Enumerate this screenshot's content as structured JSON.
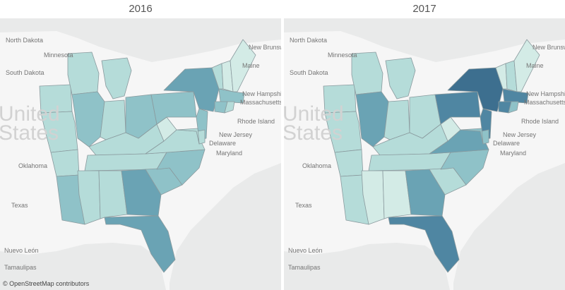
{
  "colors": {
    "water": "#e9eaea",
    "land": "#f6f6f6",
    "state_border": "#8a9a9e",
    "scale": [
      "#d3ebe6",
      "#b5dcd9",
      "#8fc2c8",
      "#6aa3b4",
      "#4f86a2",
      "#3d6f8f"
    ]
  },
  "credit": "© OpenStreetMap contributors",
  "maps": [
    {
      "title": "2016",
      "labels": {
        "north_dakota": "North Dakota",
        "minnesota": "Minnesota",
        "south_dakota": "South Dakota",
        "united": "United",
        "states": "States",
        "oklahoma": "Oklahoma",
        "texas": "Texas",
        "nuevo_leon": "Nuevo León",
        "tamaulipas": "Tamaulipas",
        "new_brunswick": "New Brunswick",
        "maine": "Maine",
        "new_hampshire": "New Hampshire",
        "massachusetts": "Massachusetts",
        "rhode_island": "Rhode Island",
        "new_jersey": "New Jersey",
        "delaware": "Delaware",
        "maryland": "Maryland"
      },
      "levels": {
        "WI": 1,
        "MI": 1,
        "IL": 2,
        "IN": 1,
        "OH": 2,
        "KY": 1,
        "TN": 1,
        "MS": 1,
        "AL": 1,
        "GA": 3,
        "FL": 3,
        "SC": 2,
        "NC": 2,
        "VA": 1,
        "WV": 0,
        "PA": 2,
        "NY": 3,
        "VT": 1,
        "NH": 0,
        "ME": 0,
        "MA": 2,
        "CT": 2,
        "RI": 1,
        "NJ": 2,
        "DE": 1,
        "MD": 1,
        "IA": 1,
        "MO": 1,
        "AR": 1,
        "LA": 2
      }
    },
    {
      "title": "2017",
      "labels": {
        "north_dakota": "North Dakota",
        "minnesota": "Minnesota",
        "south_dakota": "South Dakota",
        "united": "United",
        "states": "States",
        "oklahoma": "Oklahoma",
        "texas": "Texas",
        "nuevo_leon": "Nuevo León",
        "tamaulipas": "Tamaulipas",
        "new_brunswick": "New Brunswick",
        "maine": "Maine",
        "new_hampshire": "New Hampshire",
        "massachusetts": "Massachusetts",
        "rhode_island": "Rhode Island",
        "new_jersey": "New Jersey",
        "delaware": "Delaware",
        "maryland": "Maryland"
      },
      "levels": {
        "WI": 1,
        "MI": 1,
        "IL": 3,
        "IN": 1,
        "OH": 1,
        "KY": 1,
        "TN": 1,
        "MS": 0,
        "AL": 0,
        "GA": 3,
        "FL": 4,
        "SC": 1,
        "NC": 2,
        "VA": 3,
        "WV": 0,
        "PA": 4,
        "NY": 5,
        "VT": 0,
        "NH": 1,
        "ME": 0,
        "MA": 4,
        "CT": 4,
        "RI": 2,
        "NJ": 4,
        "DE": 2,
        "MD": 2,
        "IA": 1,
        "MO": 1,
        "AR": 1,
        "LA": 1
      }
    }
  ]
}
